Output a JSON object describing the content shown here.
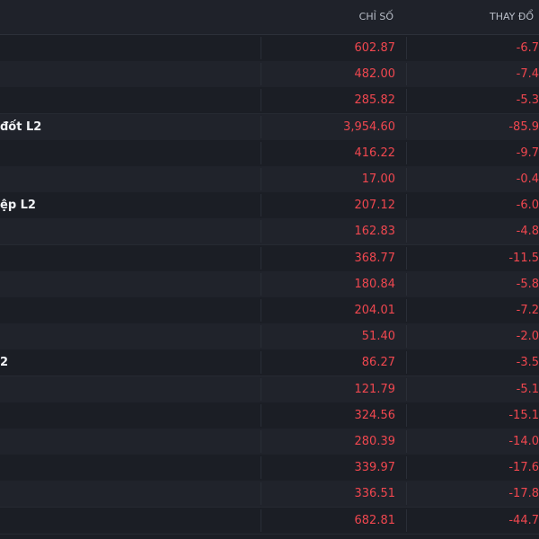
{
  "header": {
    "value": "CHỈ SỐ",
    "change": "THAY ĐỔ"
  },
  "rows": [
    {
      "value": "602.87",
      "change": "-6.7"
    },
    {
      "value": "482.00",
      "change": "-7.4"
    },
    {
      "value": "285.82",
      "change": "-5.3"
    },
    {
      "name": "đốt L2",
      "value": "3,954.60",
      "change": "-85.9"
    },
    {
      "value": "416.22",
      "change": "-9.7"
    },
    {
      "value": "17.00",
      "change": "-0.4"
    },
    {
      "name": "ệp L2",
      "value": "207.12",
      "change": "-6.0"
    },
    {
      "value": "162.83",
      "change": "-4.8"
    },
    {
      "value": "368.77",
      "change": "-11.5"
    },
    {
      "value": "180.84",
      "change": "-5.8"
    },
    {
      "value": "204.01",
      "change": "-7.2"
    },
    {
      "value": "51.40",
      "change": "-2.0"
    },
    {
      "name": "2",
      "value": "86.27",
      "change": "-3.5"
    },
    {
      "value": "121.79",
      "change": "-5.1"
    },
    {
      "value": "324.56",
      "change": "-15.1"
    },
    {
      "value": "280.39",
      "change": "-14.0"
    },
    {
      "value": "339.97",
      "change": "-17.6"
    },
    {
      "value": "336.51",
      "change": "-17.8"
    },
    {
      "value": "682.81",
      "change": "-44.7"
    }
  ]
}
